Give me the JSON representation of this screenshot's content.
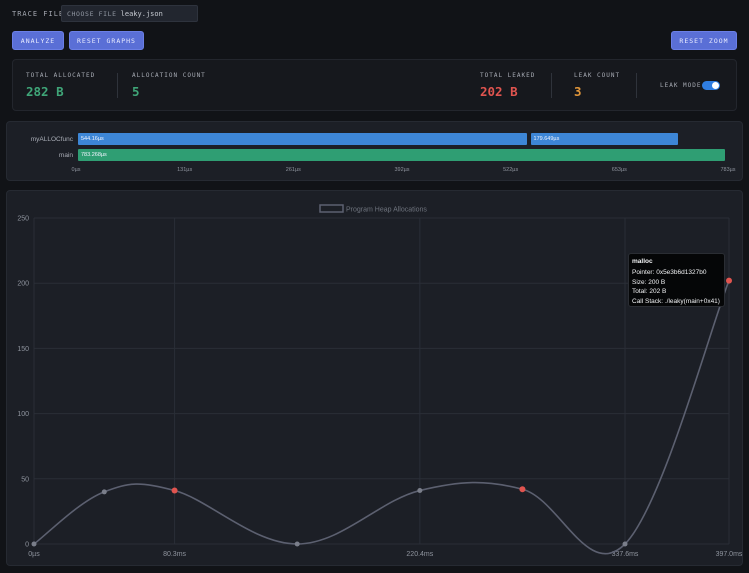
{
  "header": {
    "trace_file_label": "TRACE FILE",
    "choose_file_label": "CHOOSE FILE",
    "file_name": "leaky.json",
    "analyze_label": "ANALYZE",
    "reset_graphs_label": "RESET GRAPHS",
    "reset_zoom_label": "RESET ZOOM"
  },
  "stats": {
    "total_allocated": {
      "label": "TOTAL ALLOCATED",
      "value": "282 B"
    },
    "allocation_count": {
      "label": "ALLOCATION COUNT",
      "value": "5"
    },
    "total_leaked": {
      "label": "TOTAL LEAKED",
      "value": "202 B"
    },
    "leak_count": {
      "label": "LEAK COUNT",
      "value": "3"
    },
    "leak_mode": {
      "label": "LEAK MODE",
      "enabled": true
    },
    "colors": {
      "allocated": "#3fa578",
      "count": "#3fa578",
      "leaked": "#e0544f",
      "leak_count": "#e0963a"
    }
  },
  "timeline": {
    "rows": [
      {
        "label": "myALLOCfunc",
        "bars": [
          {
            "label": "544.16µs",
            "start_us": 0,
            "duration_us": 544.16,
            "color": "#3d86d6"
          },
          {
            "label": "179.649µs",
            "start_us": 547,
            "duration_us": 179.649,
            "color": "#3d86d6"
          }
        ]
      },
      {
        "label": "main",
        "bars": [
          {
            "label": "783.268µs",
            "start_us": 0,
            "duration_us": 783.268,
            "color": "#2f9e73"
          }
        ]
      }
    ],
    "axis_max_us": 783.268,
    "ticks": [
      "0µs",
      "131µs",
      "261µs",
      "392µs",
      "522µs",
      "653µs",
      "783µs"
    ]
  },
  "chart_data": {
    "type": "line",
    "legend": "Program Heap Allocations",
    "x": [
      0,
      40.15,
      80.3,
      150.35,
      220.4,
      279,
      337.6,
      397.0
    ],
    "values": [
      0,
      40,
      41,
      0,
      41,
      42,
      0,
      202
    ],
    "leak_points": [
      false,
      false,
      true,
      false,
      false,
      true,
      false,
      true
    ],
    "ylim": [
      0,
      250
    ],
    "yticks": [
      0,
      50,
      100,
      150,
      200,
      250
    ],
    "xticks": [
      "0µs",
      "80.3ms",
      "220.4ms",
      "337.6ms",
      "397.0ms"
    ],
    "xtick_values": [
      0,
      80.3,
      220.4,
      337.6,
      397.0
    ],
    "xlim": [
      0,
      397.0
    ],
    "line_color": "#5c6070",
    "leak_color": "#e0544f",
    "normal_point_color": "#7a7e8a"
  },
  "tooltip": {
    "title": "malloc",
    "lines": [
      "Pointer: 0x5e3b6d1327b0",
      "Size: 200 B",
      "Total: 202 B",
      "Call Stack: ./leaky(main+0x41)"
    ]
  }
}
